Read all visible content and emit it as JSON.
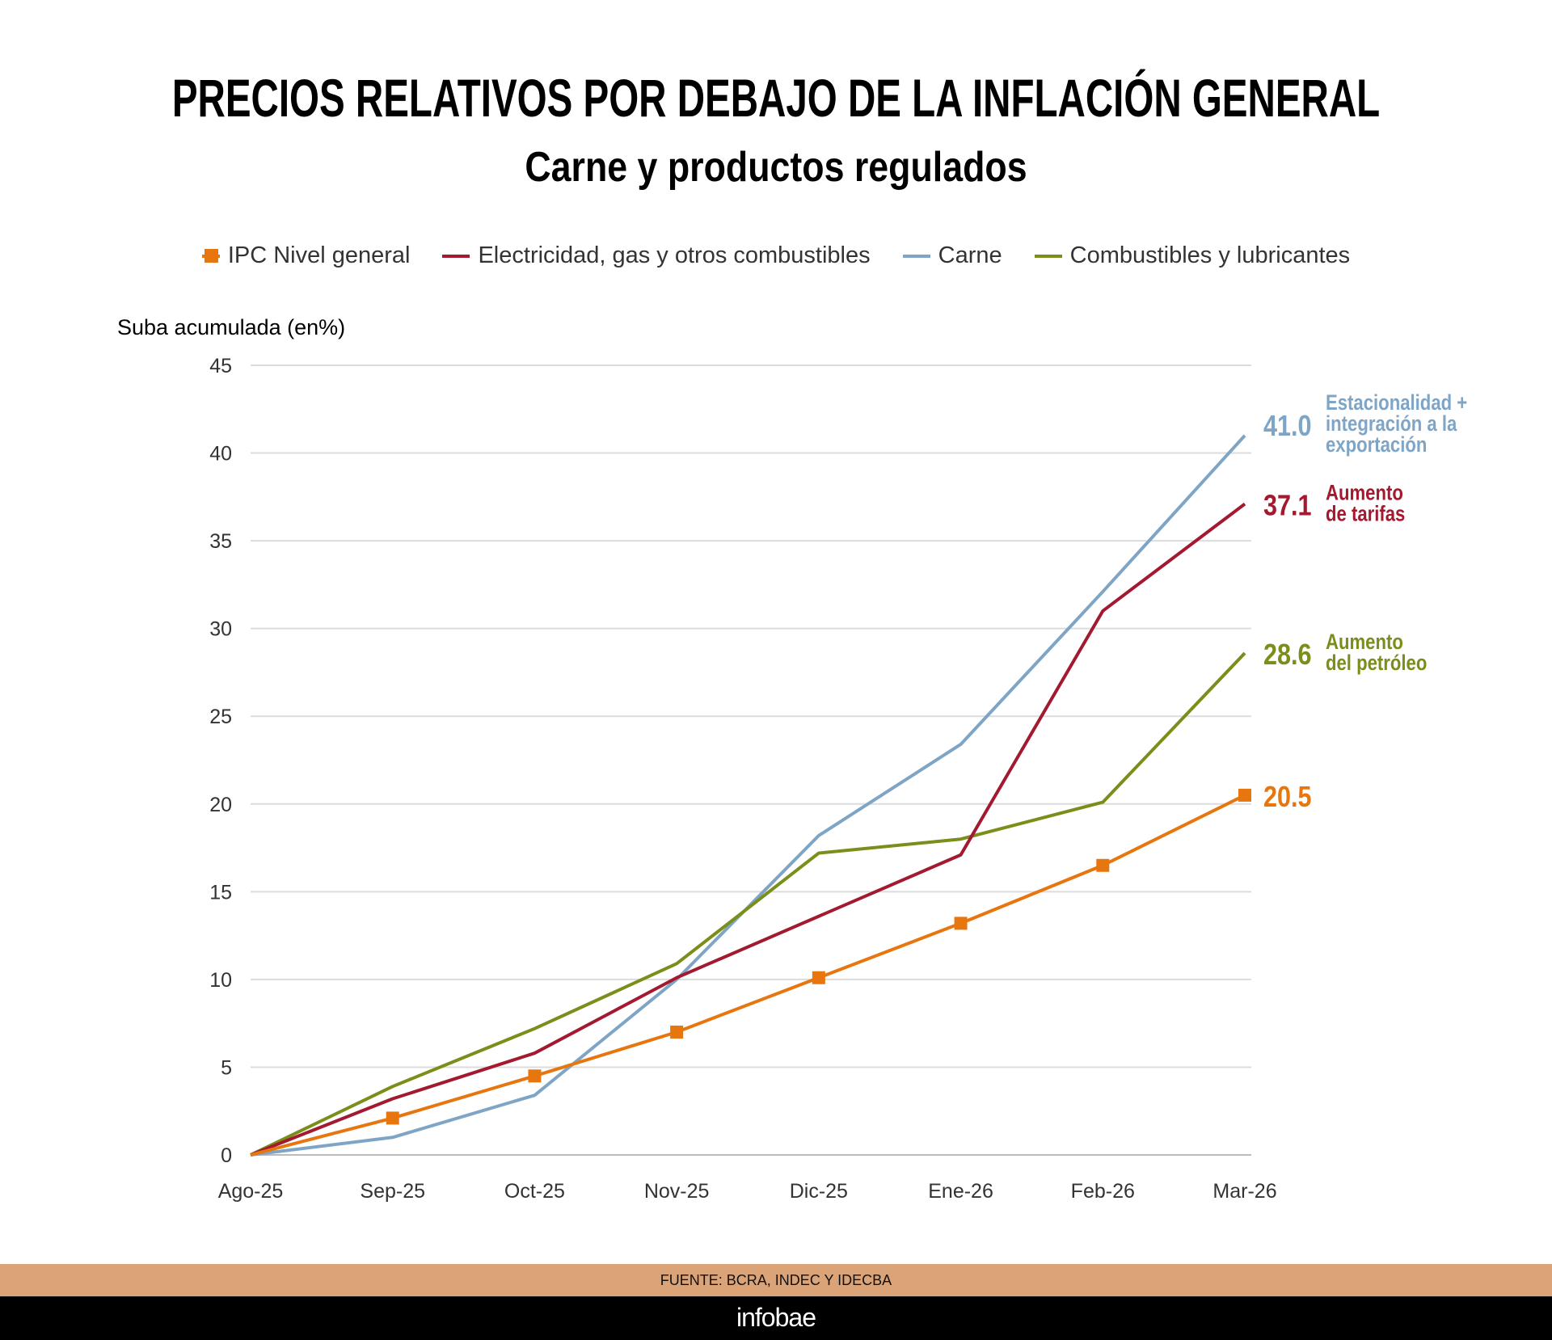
{
  "chart_data": {
    "type": "line",
    "title": "PRECIOS RELATIVOS POR DEBAJO DE LA INFLACIÓN GENERAL",
    "subtitle": "Carne y productos regulados",
    "ylabel": "Suba acumulada (en%)",
    "xlabel": "",
    "ylim": [
      0,
      45
    ],
    "yticks": [
      "0",
      "5",
      "10",
      "15",
      "20",
      "25",
      "30",
      "35",
      "40",
      "45"
    ],
    "grid": true,
    "legend_position": "top",
    "categories": [
      "Ago-25",
      "Sep-25",
      "Oct-25",
      "Nov-25",
      "Dic-25",
      "Ene-26",
      "Feb-26",
      "Mar-26"
    ],
    "series": [
      {
        "name": "IPC Nivel general",
        "color": "#e8760f",
        "marker": "square",
        "values": [
          0,
          2.1,
          4.5,
          7.0,
          10.1,
          13.2,
          16.5,
          20.5
        ],
        "end_label": "20.5",
        "annotation": []
      },
      {
        "name": "Electricidad, gas y otros combustibles",
        "color": "#a3192f",
        "marker": "none",
        "values": [
          0,
          3.2,
          5.8,
          10.1,
          13.6,
          17.1,
          31.0,
          37.1
        ],
        "end_label": "37.1",
        "annotation": [
          "Aumento",
          "de tarifas"
        ]
      },
      {
        "name": "Carne",
        "color": "#7fa5c6",
        "marker": "none",
        "values": [
          0,
          1.0,
          3.4,
          10.0,
          18.2,
          23.4,
          32.1,
          41.0
        ],
        "end_label": "41.0",
        "annotation": [
          "Estacionalidad +",
          "integración a la",
          "exportación"
        ]
      },
      {
        "name": "Combustibles y lubricantes",
        "color": "#7a8e1a",
        "marker": "none",
        "values": [
          0,
          3.9,
          7.2,
          10.9,
          17.2,
          18.0,
          20.1,
          28.6
        ],
        "end_label": "28.6",
        "annotation": [
          "Aumento",
          "del petróleo"
        ]
      }
    ]
  },
  "footer": {
    "source": "FUENTE: BCRA, INDEC Y IDECBA",
    "brand": "infobae"
  }
}
